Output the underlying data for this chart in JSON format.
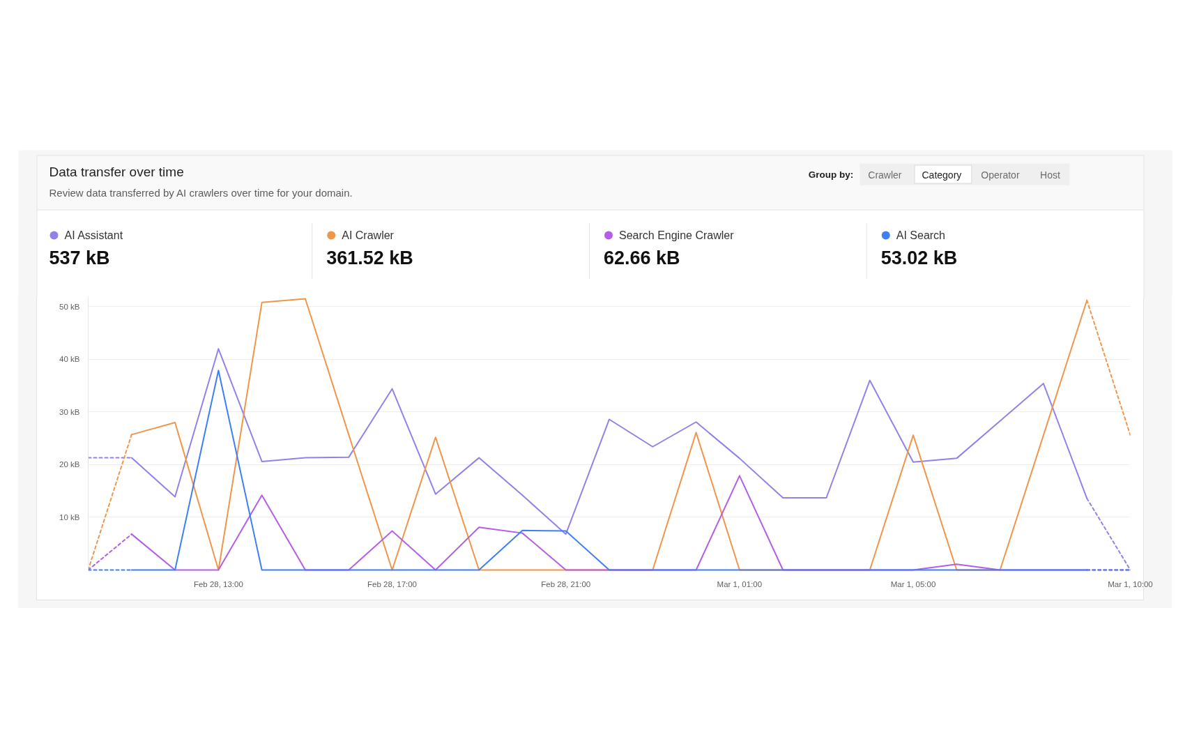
{
  "chart_data": {
    "type": "line",
    "title": "Data transfer over time",
    "subtitle": "Review data transferred by AI crawlers over time for your domain.",
    "categories": [
      null,
      null,
      null,
      "Feb 28, 13:00",
      null,
      null,
      null,
      "Feb 28, 17:00",
      null,
      null,
      null,
      "Feb 28, 21:00",
      null,
      null,
      null,
      "Mar 1, 01:00",
      null,
      null,
      null,
      "Mar 1, 05:00",
      null,
      null,
      null,
      null,
      "Mar 1, 10:00"
    ],
    "ylim": [
      0,
      51.5
    ],
    "yticks": [
      {
        "value": 10,
        "label": "10 kB"
      },
      {
        "value": 20,
        "label": "20 kB"
      },
      {
        "value": 30,
        "label": "30 kB"
      },
      {
        "value": 40,
        "label": "40 kB"
      },
      {
        "value": 50,
        "label": "50 kB"
      }
    ],
    "grid": "y",
    "legend": "top",
    "series": [
      {
        "name": "AI Assistant",
        "color": "#8f83ea",
        "line_style": "solid",
        "values": [
          null,
          21.3,
          13.9,
          42.0,
          20.6,
          21.3,
          21.4,
          34.4,
          14.4,
          21.3,
          14.2,
          6.8,
          28.6,
          23.4,
          28.1,
          21.2,
          13.7,
          13.7,
          36.0,
          20.5,
          21.2,
          28.3,
          35.4,
          13.6,
          null
        ]
      },
      {
        "name": "AI Crawler",
        "color": "#f0964a",
        "line_style": "solid",
        "values": [
          null,
          25.7,
          28.0,
          0,
          50.8,
          51.5,
          25.7,
          0,
          25.2,
          0,
          0,
          0,
          0,
          0,
          26.1,
          0,
          0,
          0,
          0,
          25.6,
          0,
          0,
          25.6,
          51.2,
          null
        ]
      },
      {
        "name": "Search Engine Crawler",
        "color": "#b35ee8",
        "line_style": "solid",
        "values": [
          null,
          6.8,
          0,
          0,
          14.2,
          0,
          0,
          7.4,
          0,
          8.1,
          7.0,
          0,
          0,
          0,
          0,
          17.9,
          0,
          0,
          0,
          0,
          1.1,
          0,
          0,
          0,
          null
        ]
      },
      {
        "name": "AI Search",
        "color": "#3d7ff5",
        "line_style": "solid",
        "values": [
          null,
          0,
          0,
          37.9,
          0,
          0,
          0,
          0,
          0,
          0,
          7.5,
          7.4,
          0,
          0,
          0,
          0,
          0,
          0,
          0,
          0,
          0,
          0,
          0,
          0,
          null
        ]
      },
      {
        "color": "#8f83ea",
        "line_style": "dashed",
        "values": [
          21.3,
          21.3,
          null,
          null,
          null,
          null,
          null,
          null,
          null,
          null,
          null,
          null,
          null,
          null,
          null,
          null,
          null,
          null,
          null,
          null,
          null,
          null,
          null,
          13.6,
          0
        ]
      },
      {
        "color": "#f0964a",
        "line_style": "dashed",
        "values": [
          0,
          25.7,
          null,
          null,
          null,
          null,
          null,
          null,
          null,
          null,
          null,
          null,
          null,
          null,
          null,
          null,
          null,
          null,
          null,
          null,
          null,
          null,
          null,
          51.2,
          25.6
        ]
      },
      {
        "color": "#b35ee8",
        "line_style": "dashed",
        "values": [
          0,
          6.8,
          null,
          null,
          null,
          null,
          null,
          null,
          null,
          null,
          null,
          null,
          null,
          null,
          null,
          null,
          null,
          null,
          null,
          null,
          null,
          null,
          null,
          0,
          0
        ]
      },
      {
        "color": "#3d7ff5",
        "line_style": "dashed",
        "values": [
          0,
          0,
          null,
          null,
          null,
          null,
          null,
          null,
          null,
          null,
          null,
          null,
          null,
          null,
          null,
          null,
          null,
          null,
          null,
          null,
          null,
          null,
          null,
          0,
          0
        ]
      }
    ],
    "annotations": [
      "537 kB",
      "361.52 kB",
      "62.66 kB",
      "53.02 kB",
      "Group by:",
      "Crawler",
      "Category",
      "Operator",
      "Host"
    ]
  }
}
